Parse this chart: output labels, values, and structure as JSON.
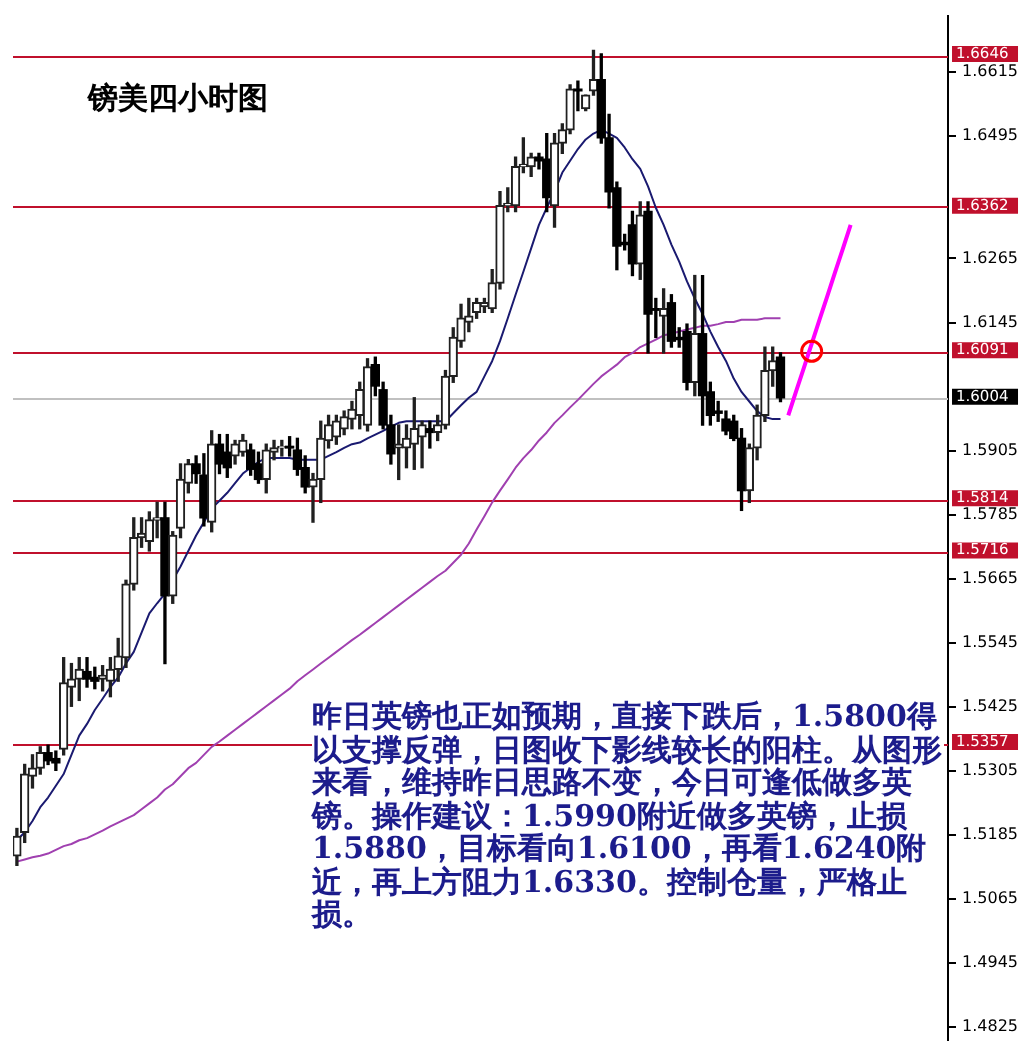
{
  "chart_data": {
    "type": "candlestick",
    "title": "镑美四小时图",
    "categories": [
      null,
      null,
      null,
      null,
      null,
      null,
      null,
      null,
      null,
      null,
      null,
      null,
      null,
      null,
      null,
      null,
      null,
      null,
      null,
      null,
      null,
      null,
      null,
      null,
      null,
      null,
      null,
      null,
      null,
      null,
      null,
      null,
      null,
      null,
      null,
      null,
      null,
      null,
      null,
      null,
      null,
      null,
      null,
      null,
      null,
      null,
      null,
      null,
      null,
      null,
      null,
      null,
      null,
      null,
      null,
      null,
      null,
      null,
      null,
      null,
      null,
      null,
      null,
      null,
      null,
      null,
      null,
      null,
      null,
      null,
      null,
      null,
      null,
      null,
      null,
      null,
      null,
      null,
      null,
      null,
      null,
      null,
      null,
      null,
      null,
      null,
      null,
      null,
      null,
      null,
      null,
      null,
      null,
      null,
      null,
      null,
      null,
      null,
      null,
      null,
      null,
      null,
      null,
      null,
      null,
      null,
      null,
      null,
      null,
      null,
      null,
      null,
      null,
      null,
      null,
      null,
      null,
      null,
      null,
      null
    ],
    "ohlc": [
      [
        1.5146,
        1.5197,
        1.5128,
        1.5182
      ],
      [
        1.519,
        1.5317,
        1.5171,
        1.5299
      ],
      [
        1.5295,
        1.5335,
        1.5273,
        1.531
      ],
      [
        1.531,
        1.535,
        1.5299,
        1.5339
      ],
      [
        1.5339,
        1.5353,
        1.5317,
        1.5324
      ],
      [
        1.5328,
        1.5342,
        1.5306,
        1.532
      ],
      [
        1.5346,
        1.5517,
        1.5335,
        1.547
      ],
      [
        1.5462,
        1.5506,
        1.5426,
        1.5477
      ],
      [
        1.5477,
        1.5517,
        1.5437,
        1.5495
      ],
      [
        1.5491,
        1.5517,
        1.5462,
        1.5477
      ],
      [
        1.548,
        1.5499,
        1.5459,
        1.5473
      ],
      [
        1.5477,
        1.5502,
        1.5455,
        1.5484
      ],
      [
        1.5473,
        1.5517,
        1.5444,
        1.5495
      ],
      [
        1.5495,
        1.5553,
        1.5473,
        1.552
      ],
      [
        1.5517,
        1.5662,
        1.5499,
        1.5655
      ],
      [
        1.5655,
        1.5779,
        1.5644,
        1.5742
      ],
      [
        1.5742,
        1.5779,
        1.5724,
        1.575
      ],
      [
        1.5735,
        1.579,
        1.5717,
        1.5775
      ],
      [
        1.5775,
        1.5808,
        1.5742,
        1.5779
      ],
      [
        1.5779,
        1.5808,
        1.5506,
        1.5633
      ],
      [
        1.5633,
        1.5753,
        1.5619,
        1.5746
      ],
      [
        1.576,
        1.588,
        1.5742,
        1.5851
      ],
      [
        1.5844,
        1.5888,
        1.5826,
        1.588
      ],
      [
        1.588,
        1.5895,
        1.5844,
        1.5862
      ],
      [
        1.5859,
        1.5899,
        1.5764,
        1.5779
      ],
      [
        1.5771,
        1.5942,
        1.5753,
        1.5917
      ],
      [
        1.5917,
        1.5935,
        1.5862,
        1.588
      ],
      [
        1.5902,
        1.5935,
        1.5855,
        1.5873
      ],
      [
        1.5895,
        1.5924,
        1.588,
        1.5917
      ],
      [
        1.5902,
        1.5935,
        1.5895,
        1.5924
      ],
      [
        1.5906,
        1.5917,
        1.5859,
        1.587
      ],
      [
        1.588,
        1.5902,
        1.5844,
        1.5851
      ],
      [
        1.5851,
        1.5917,
        1.5826,
        1.5906
      ],
      [
        1.5902,
        1.5924,
        1.5888,
        1.591
      ],
      [
        1.591,
        1.5924,
        1.5895,
        1.5913
      ],
      [
        1.5913,
        1.5931,
        1.5895,
        1.591
      ],
      [
        1.5906,
        1.5928,
        1.5859,
        1.587
      ],
      [
        1.5873,
        1.5895,
        1.5826,
        1.5837
      ],
      [
        1.5837,
        1.5862,
        1.5771,
        1.5851
      ],
      [
        1.5851,
        1.596,
        1.5808,
        1.5928
      ],
      [
        1.5924,
        1.5971,
        1.591,
        1.5953
      ],
      [
        1.5931,
        1.5971,
        1.5917,
        1.596
      ],
      [
        1.5946,
        1.5979,
        1.5935,
        1.5968
      ],
      [
        1.5964,
        1.5997,
        1.5946,
        1.5982
      ],
      [
        1.5971,
        1.6033,
        1.5946,
        1.6019
      ],
      [
        1.5953,
        1.6077,
        1.5942,
        1.6062
      ],
      [
        1.6066,
        1.608,
        1.6008,
        1.6026
      ],
      [
        1.6019,
        1.6033,
        1.5946,
        1.5953
      ],
      [
        1.5953,
        1.5971,
        1.588,
        1.5899
      ],
      [
        1.591,
        1.5953,
        1.5851,
        1.5917
      ],
      [
        1.591,
        1.5953,
        1.5873,
        1.5928
      ],
      [
        1.5917,
        1.6004,
        1.587,
        1.5946
      ],
      [
        1.5931,
        1.596,
        1.5873,
        1.5953
      ],
      [
        1.5946,
        1.596,
        1.591,
        1.5939
      ],
      [
        1.5939,
        1.5971,
        1.5924,
        1.5953
      ],
      [
        1.5953,
        1.6055,
        1.5946,
        1.6044
      ],
      [
        1.6044,
        1.6135,
        1.6033,
        1.6117
      ],
      [
        1.611,
        1.6179,
        1.6099,
        1.6153
      ],
      [
        1.6146,
        1.619,
        1.6128,
        1.6157
      ],
      [
        1.6164,
        1.619,
        1.6153,
        1.6182
      ],
      [
        1.6175,
        1.619,
        1.6164,
        1.6182
      ],
      [
        1.6171,
        1.6244,
        1.6164,
        1.6219
      ],
      [
        1.6219,
        1.639,
        1.6208,
        1.6364
      ],
      [
        1.6364,
        1.6397,
        1.6353,
        1.6368
      ],
      [
        1.6364,
        1.6455,
        1.6353,
        1.6437
      ],
      [
        1.6437,
        1.6491,
        1.6426,
        1.6441
      ],
      [
        1.6437,
        1.6462,
        1.6419,
        1.6455
      ],
      [
        1.6455,
        1.6462,
        1.6433,
        1.6448
      ],
      [
        1.6451,
        1.6499,
        1.6353,
        1.6379
      ],
      [
        1.6364,
        1.6499,
        1.6324,
        1.6481
      ],
      [
        1.6481,
        1.6517,
        1.6462,
        1.6506
      ],
      [
        1.6506,
        1.659,
        1.6499,
        1.6582
      ],
      [
        1.6582,
        1.6597,
        1.6542,
        1.6579
      ],
      [
        1.6546,
        1.6571,
        1.6542,
        1.6571
      ],
      [
        1.6579,
        1.6655,
        1.6571,
        1.66
      ],
      [
        1.66,
        1.6648,
        1.6481,
        1.6491
      ],
      [
        1.6491,
        1.6535,
        1.636,
        1.639
      ],
      [
        1.6397,
        1.6408,
        1.6244,
        1.6288
      ],
      [
        1.6295,
        1.631,
        1.6281,
        1.6291
      ],
      [
        1.6328,
        1.6353,
        1.6233,
        1.6255
      ],
      [
        1.6255,
        1.6371,
        1.6226,
        1.6346
      ],
      [
        1.6353,
        1.6371,
        1.6088,
        1.6161
      ],
      [
        1.6171,
        1.619,
        1.6117,
        1.6168
      ],
      [
        1.6157,
        1.6208,
        1.6088,
        1.6171
      ],
      [
        1.6182,
        1.6197,
        1.6099,
        1.611
      ],
      [
        1.6117,
        1.6135,
        1.6099,
        1.6113
      ],
      [
        1.6128,
        1.6142,
        1.6019,
        1.6033
      ],
      [
        1.6033,
        1.6233,
        1.6008,
        1.6124
      ],
      [
        1.6124,
        1.6233,
        1.5953,
        1.6008
      ],
      [
        1.6015,
        1.6033,
        1.5953,
        1.5971
      ],
      [
        1.5979,
        1.5997,
        1.596,
        1.5975
      ],
      [
        1.5964,
        1.5979,
        1.5935,
        1.5942
      ],
      [
        1.596,
        1.5971,
        1.5924,
        1.5928
      ],
      [
        1.5928,
        1.5946,
        1.5793,
        1.583
      ],
      [
        1.583,
        1.5917,
        1.5808,
        1.591
      ],
      [
        1.591,
        1.599,
        1.5888,
        1.5971
      ],
      [
        1.5971,
        1.6099,
        1.596,
        1.6055
      ],
      [
        1.6055,
        1.6099,
        1.6026,
        1.6073
      ],
      [
        1.608,
        1.6088,
        1.5997,
        1.6004
      ],
      null,
      null,
      null,
      null,
      null,
      null,
      null,
      null,
      null,
      null,
      null,
      null,
      null,
      null,
      null,
      null,
      null,
      null,
      null,
      null,
      null
    ],
    "series": [
      {
        "type": "line",
        "color": "#1a1a70",
        "values": [
          1.5175,
          1.519,
          1.5211,
          1.5237,
          1.5255,
          1.5277,
          1.5299,
          1.5335,
          1.5371,
          1.5393,
          1.5419,
          1.544,
          1.5462,
          1.548,
          1.5506,
          1.5528,
          1.5564,
          1.56,
          1.5619,
          1.5637,
          1.5662,
          1.5688,
          1.5717,
          1.5746,
          1.5771,
          1.5797,
          1.5811,
          1.5826,
          1.5844,
          1.5862,
          1.5873,
          1.5884,
          1.5891,
          1.5891,
          1.5891,
          1.5891,
          1.5888,
          1.5888,
          1.5888,
          1.5888,
          1.5895,
          1.5902,
          1.591,
          1.5917,
          1.592,
          1.5928,
          1.5935,
          1.5942,
          1.595,
          1.5957,
          1.596,
          1.596,
          1.596,
          1.596,
          1.596,
          1.596,
          1.5975,
          1.599,
          1.6004,
          1.6015,
          1.6044,
          1.6073,
          1.611,
          1.6153,
          1.6197,
          1.624,
          1.6284,
          1.6328,
          1.636,
          1.639,
          1.6426,
          1.6448,
          1.647,
          1.6488,
          1.6499,
          1.6506,
          1.6499,
          1.6491,
          1.6473,
          1.6451,
          1.6433,
          1.64,
          1.636,
          1.6328,
          1.6291,
          1.6259,
          1.6222,
          1.619,
          1.6161,
          1.6128,
          1.6099,
          1.6073,
          1.604,
          1.6015,
          1.5997,
          1.5979,
          1.5968,
          1.5964,
          1.5964,
          null,
          null,
          null,
          null,
          null,
          null,
          null,
          null,
          null,
          null,
          null,
          null,
          null,
          null,
          null,
          null,
          null,
          null,
          null,
          null,
          null
        ]
      },
      {
        "type": "line",
        "color": "#a040b0",
        "values": [
          1.5135,
          1.5139,
          1.5143,
          1.5146,
          1.515,
          1.5157,
          1.5164,
          1.5168,
          1.5175,
          1.5179,
          1.5186,
          1.5193,
          1.5201,
          1.5208,
          1.5215,
          1.5222,
          1.5233,
          1.5244,
          1.5255,
          1.527,
          1.528,
          1.5295,
          1.531,
          1.532,
          1.5335,
          1.535,
          1.536,
          1.5371,
          1.5382,
          1.5393,
          1.5404,
          1.5415,
          1.5426,
          1.5437,
          1.5448,
          1.5459,
          1.5473,
          1.5484,
          1.5495,
          1.5506,
          1.5517,
          1.5528,
          1.5539,
          1.555,
          1.556,
          1.5571,
          1.5582,
          1.5593,
          1.5604,
          1.5615,
          1.5626,
          1.5637,
          1.5648,
          1.5659,
          1.567,
          1.568,
          1.5695,
          1.571,
          1.5731,
          1.5757,
          1.5782,
          1.5808,
          1.583,
          1.5851,
          1.5873,
          1.5891,
          1.5906,
          1.5924,
          1.5939,
          1.5957,
          1.5971,
          1.5986,
          1.6,
          1.6015,
          1.603,
          1.6044,
          1.6055,
          1.6066,
          1.608,
          1.6088,
          1.6099,
          1.6106,
          1.6113,
          1.6121,
          1.6124,
          1.6128,
          1.6132,
          1.6135,
          1.6139,
          1.6139,
          1.6142,
          1.6146,
          1.6146,
          1.615,
          1.615,
          1.615,
          1.6153,
          1.6153,
          1.6153,
          null,
          null,
          null,
          null,
          null,
          null,
          null,
          null,
          null,
          null,
          null,
          null,
          null,
          null,
          null,
          null,
          null,
          null,
          null,
          null,
          null
        ]
      },
      {
        "type": "line",
        "color": "#ff00ff",
        "values": [
          null,
          null,
          null,
          null,
          null,
          null,
          null,
          null,
          null,
          null,
          null,
          null,
          null,
          null,
          null,
          null,
          null,
          null,
          null,
          null,
          null,
          null,
          null,
          null,
          null,
          null,
          null,
          null,
          null,
          null,
          null,
          null,
          null,
          null,
          null,
          null,
          null,
          null,
          null,
          null,
          null,
          null,
          null,
          null,
          null,
          null,
          null,
          null,
          null,
          null,
          null,
          null,
          null,
          null,
          null,
          null,
          null,
          null,
          null,
          null,
          null,
          null,
          null,
          null,
          null,
          null,
          null,
          null,
          null,
          null,
          null,
          null,
          null,
          null,
          null,
          null,
          null,
          null,
          null,
          null,
          null,
          null,
          null,
          null,
          null,
          null,
          null,
          null,
          null,
          null,
          null,
          null,
          null,
          null,
          null,
          null,
          null,
          null,
          null,
          1.5971,
          1.6016,
          1.606,
          1.6105,
          1.615,
          1.6194,
          1.6239,
          1.6283,
          1.6328,
          null,
          null,
          null,
          null,
          null,
          null,
          null,
          null,
          null,
          null,
          null,
          null
        ]
      },
      {
        "type": "scatter",
        "color": "#ff0000",
        "marker": "circle",
        "values": [
          null,
          null,
          null,
          null,
          null,
          null,
          null,
          null,
          null,
          null,
          null,
          null,
          null,
          null,
          null,
          null,
          null,
          null,
          null,
          null,
          null,
          null,
          null,
          null,
          null,
          null,
          null,
          null,
          null,
          null,
          null,
          null,
          null,
          null,
          null,
          null,
          null,
          null,
          null,
          null,
          null,
          null,
          null,
          null,
          null,
          null,
          null,
          null,
          null,
          null,
          null,
          null,
          null,
          null,
          null,
          null,
          null,
          null,
          null,
          null,
          null,
          null,
          null,
          null,
          null,
          null,
          null,
          null,
          null,
          null,
          null,
          null,
          null,
          null,
          null,
          null,
          null,
          null,
          null,
          null,
          null,
          null,
          null,
          null,
          null,
          null,
          null,
          null,
          null,
          null,
          null,
          null,
          null,
          null,
          null,
          null,
          null,
          null,
          null,
          null,
          null,
          null,
          1.6091,
          null,
          null,
          null,
          null,
          null,
          null,
          null,
          null,
          null,
          null,
          null,
          null,
          null,
          null,
          null,
          null,
          null
        ]
      }
    ],
    "ylim": [
      1.48,
      1.672
    ],
    "yticks": [
      1.6615,
      1.6495,
      1.6265,
      1.6145,
      1.5905,
      1.5785,
      1.5665,
      1.5545,
      1.5425,
      1.5305,
      1.5185,
      1.5065,
      1.4945,
      1.4825
    ],
    "tick_labels": "y",
    "ref_lines": [
      {
        "axis": "y",
        "value": 1.6646,
        "label": "1.6646",
        "color": "#c0102c"
      },
      {
        "axis": "y",
        "value": 1.6362,
        "label": "1.6362",
        "color": "#c0102c"
      },
      {
        "axis": "y",
        "value": 1.6091,
        "label": "1.6091",
        "color": "#c0102c"
      },
      {
        "axis": "y",
        "value": 1.6004,
        "label": "1.6004",
        "color": "#c0c0c0"
      },
      {
        "axis": "y",
        "value": 1.5814,
        "label": "1.5814",
        "color": "#c0102c"
      },
      {
        "axis": "y",
        "value": 1.5716,
        "label": "1.5716",
        "color": "#c0102c"
      },
      {
        "axis": "y",
        "value": 1.5357,
        "label": "1.5357",
        "color": "#c0102c"
      }
    ],
    "annotations": [
      "昨日英镑也正如预期，直接下跌后，1.5800得以支撑反弹，日图收下影线较长的阳柱。从图形来看，维持昨日思路不变，今日可逢低做多英镑。操作建议：1.5990附近做多英镑，止损1.5880，目标看向1.6100，再看1.6240附近，再上方阻力1.6330。控制仓量，严格止损。"
    ]
  }
}
